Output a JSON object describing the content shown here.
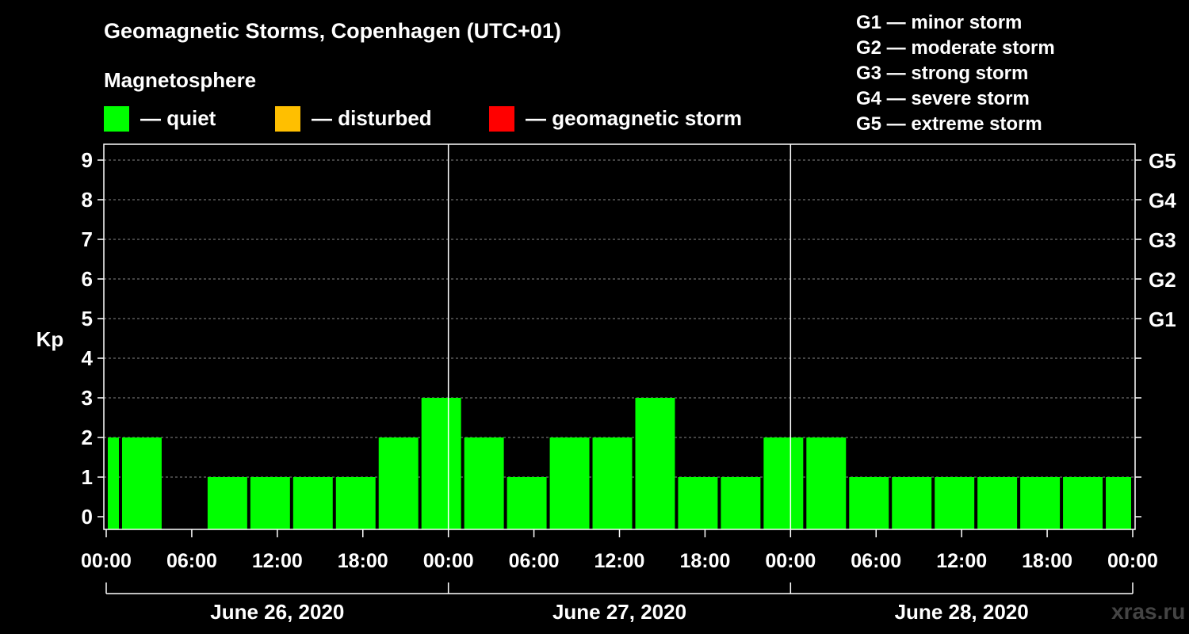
{
  "header": {
    "title": "Geomagnetic Storms, Copenhagen (UTC+01)",
    "magnetosphere_label": "Magnetosphere"
  },
  "legend": [
    {
      "label": "— quiet",
      "color": "#00ff00"
    },
    {
      "label": "— disturbed",
      "color": "#ffbf00"
    },
    {
      "label": "— geomagnetic storm",
      "color": "#ff0000"
    }
  ],
  "storm_scale": [
    "G1 — minor storm",
    "G2 — moderate storm",
    "G3 — strong storm",
    "G4 — severe storm",
    "G5 — extreme storm"
  ],
  "watermark": "xras.ru",
  "chart_data": {
    "type": "bar",
    "title": "Geomagnetic Storms, Copenhagen (UTC+01)",
    "ylabel": "Kp",
    "ylim": [
      0,
      9
    ],
    "yticks": [
      0,
      1,
      2,
      3,
      4,
      5,
      6,
      7,
      8,
      9
    ],
    "y_right_labels": [
      {
        "kp": 5,
        "label": "G1"
      },
      {
        "kp": 6,
        "label": "G2"
      },
      {
        "kp": 7,
        "label": "G3"
      },
      {
        "kp": 8,
        "label": "G4"
      },
      {
        "kp": 9,
        "label": "G5"
      }
    ],
    "x_range_hours": [
      0,
      72
    ],
    "x_tick_labels": [
      "00:00",
      "06:00",
      "12:00",
      "18:00",
      "00:00",
      "06:00",
      "12:00",
      "18:00",
      "00:00",
      "06:00",
      "12:00",
      "18:00",
      "00:00"
    ],
    "days": [
      "June 26, 2020",
      "June 27, 2020",
      "June 28, 2020"
    ],
    "bar_color": "#00ff00",
    "bars": [
      {
        "start": 0,
        "end": 1,
        "kp": 2
      },
      {
        "start": 1,
        "end": 4,
        "kp": 2
      },
      {
        "start": 4,
        "end": 7,
        "kp": 0
      },
      {
        "start": 7,
        "end": 10,
        "kp": 1
      },
      {
        "start": 10,
        "end": 13,
        "kp": 1
      },
      {
        "start": 13,
        "end": 16,
        "kp": 1
      },
      {
        "start": 16,
        "end": 19,
        "kp": 1
      },
      {
        "start": 19,
        "end": 22,
        "kp": 2
      },
      {
        "start": 22,
        "end": 25,
        "kp": 3
      },
      {
        "start": 25,
        "end": 28,
        "kp": 2
      },
      {
        "start": 28,
        "end": 31,
        "kp": 1
      },
      {
        "start": 31,
        "end": 34,
        "kp": 2
      },
      {
        "start": 34,
        "end": 37,
        "kp": 2
      },
      {
        "start": 37,
        "end": 40,
        "kp": 3
      },
      {
        "start": 40,
        "end": 43,
        "kp": 1
      },
      {
        "start": 43,
        "end": 46,
        "kp": 1
      },
      {
        "start": 46,
        "end": 49,
        "kp": 2
      },
      {
        "start": 49,
        "end": 52,
        "kp": 2
      },
      {
        "start": 52,
        "end": 55,
        "kp": 1
      },
      {
        "start": 55,
        "end": 58,
        "kp": 1
      },
      {
        "start": 58,
        "end": 61,
        "kp": 1
      },
      {
        "start": 61,
        "end": 64,
        "kp": 1
      },
      {
        "start": 64,
        "end": 67,
        "kp": 1
      },
      {
        "start": 67,
        "end": 70,
        "kp": 1
      },
      {
        "start": 70,
        "end": 72,
        "kp": 1
      }
    ]
  }
}
